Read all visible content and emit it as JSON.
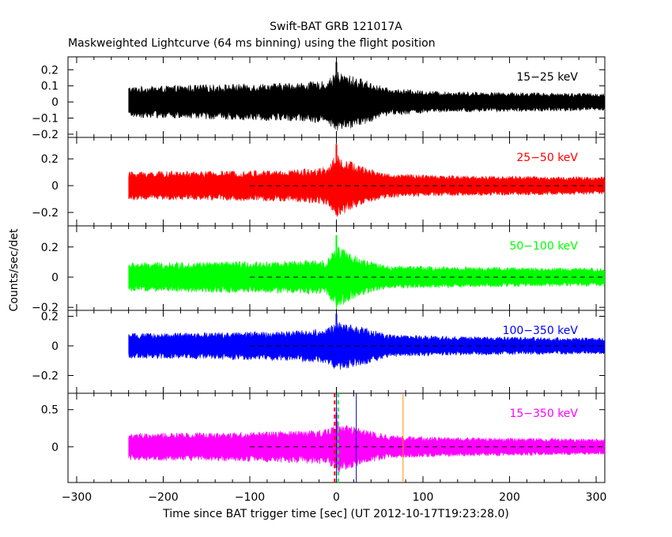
{
  "title": "Swift-BAT GRB 121017A",
  "subtitle": "Maskweighted Lightcurve (64 ms binning) using the flight position",
  "ylabel": "Counts/sec/det",
  "xlabel": "Time since BAT trigger time [sec] (UT 2012-10-17T19:23:28.0)",
  "chart_data": {
    "type": "line",
    "x_range": [
      -310,
      310
    ],
    "x_ticks": [
      -300,
      -200,
      -100,
      0,
      100,
      200,
      300
    ],
    "x_tick_labels": [
      "−300",
      "−200",
      "−100",
      "0",
      "100",
      "200",
      "300"
    ],
    "data_start": -240,
    "data_end": 310,
    "panels": [
      {
        "label": "15−25 keV",
        "color": "#000000",
        "ylim": [
          -0.22,
          0.28
        ],
        "y_ticks": [
          -0.2,
          -0.1,
          0,
          0.1,
          0.2
        ],
        "y_tick_labels": [
          "−0.2",
          "−0.1",
          "0",
          "0.1",
          "0.2"
        ],
        "zero_line": false,
        "series_points": [
          [
            -240,
            0.08
          ],
          [
            -150,
            0.09
          ],
          [
            -50,
            0.1
          ],
          [
            -10,
            0.11
          ],
          [
            0,
            0.16
          ],
          [
            30,
            0.12
          ],
          [
            60,
            0.07
          ],
          [
            120,
            0.055
          ],
          [
            200,
            0.05
          ],
          [
            310,
            0.045
          ]
        ]
      },
      {
        "label": "25−50 keV",
        "color": "#ff0000",
        "ylim": [
          -0.3,
          0.36
        ],
        "y_ticks": [
          -0.2,
          0,
          0.2
        ],
        "y_tick_labels": [
          "−0.2",
          "0",
          "0.2"
        ],
        "zero_line": true,
        "series_points": [
          [
            -240,
            0.09
          ],
          [
            -150,
            0.09
          ],
          [
            -50,
            0.1
          ],
          [
            -10,
            0.12
          ],
          [
            0,
            0.2
          ],
          [
            30,
            0.12
          ],
          [
            60,
            0.075
          ],
          [
            120,
            0.065
          ],
          [
            200,
            0.06
          ],
          [
            310,
            0.055
          ]
        ]
      },
      {
        "label": "50−100 keV",
        "color": "#00ff00",
        "ylim": [
          -0.22,
          0.34
        ],
        "y_ticks": [
          -0.2,
          0,
          0.2
        ],
        "y_tick_labels": [
          "−0.2",
          "0",
          "0.2"
        ],
        "zero_line": true,
        "series_points": [
          [
            -240,
            0.08
          ],
          [
            -150,
            0.085
          ],
          [
            -50,
            0.09
          ],
          [
            -10,
            0.1
          ],
          [
            0,
            0.18
          ],
          [
            30,
            0.1
          ],
          [
            60,
            0.065
          ],
          [
            120,
            0.06
          ],
          [
            200,
            0.055
          ],
          [
            310,
            0.05
          ]
        ]
      },
      {
        "label": "100−350 keV",
        "color": "#0000ff",
        "ylim": [
          -0.32,
          0.24
        ],
        "y_ticks": [
          -0.2,
          0,
          0.2
        ],
        "y_tick_labels": [
          "−0.2",
          "0",
          "0.2"
        ],
        "zero_line": true,
        "series_points": [
          [
            -240,
            0.07
          ],
          [
            -150,
            0.075
          ],
          [
            -50,
            0.085
          ],
          [
            -10,
            0.1
          ],
          [
            0,
            0.14
          ],
          [
            30,
            0.11
          ],
          [
            60,
            0.065
          ],
          [
            120,
            0.055
          ],
          [
            200,
            0.05
          ],
          [
            310,
            0.045
          ]
        ]
      },
      {
        "label": "15−350 keV",
        "color": "#ff00ff",
        "ylim": [
          -0.48,
          0.72
        ],
        "y_ticks": [
          -0.5,
          0,
          0.5
        ],
        "y_tick_labels": [
          "",
          "0",
          "0.5"
        ],
        "zero_line": true,
        "series_points": [
          [
            -240,
            0.15
          ],
          [
            -150,
            0.16
          ],
          [
            -50,
            0.18
          ],
          [
            -10,
            0.2
          ],
          [
            0,
            0.3
          ],
          [
            30,
            0.2
          ],
          [
            60,
            0.13
          ],
          [
            120,
            0.11
          ],
          [
            200,
            0.1
          ],
          [
            310,
            0.09
          ]
        ],
        "markers": [
          {
            "x": -2,
            "color": "#ff0000",
            "style": "dashed"
          },
          {
            "x": 2,
            "color": "#00ff00",
            "style": "dashed"
          },
          {
            "x": 0,
            "color": "#0000ff",
            "style": "solid"
          },
          {
            "x": 23,
            "color": "#0000aa",
            "style": "solid"
          },
          {
            "x": 77,
            "color": "#ff8c00",
            "style": "solid"
          }
        ]
      }
    ]
  }
}
